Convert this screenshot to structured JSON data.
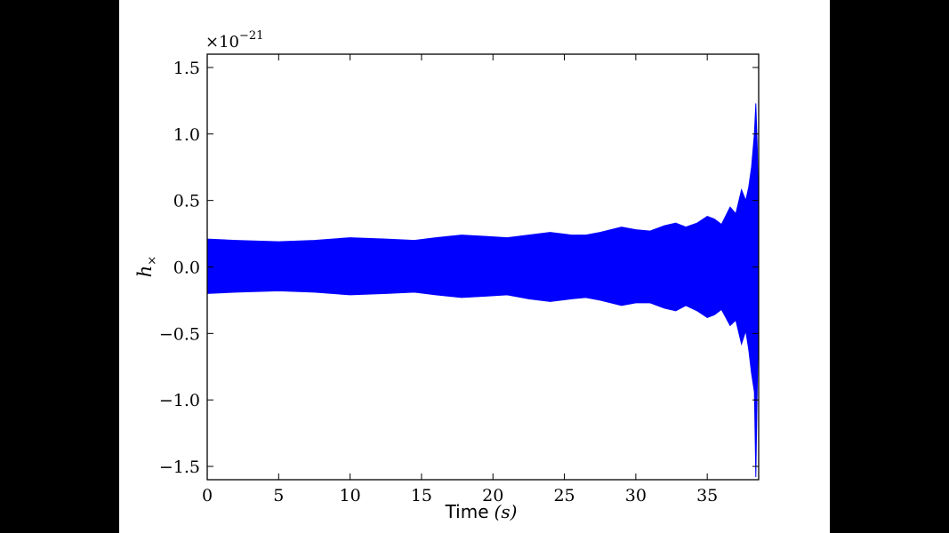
{
  "chart_data": {
    "type": "line",
    "xlabel": "Time",
    "xlabel_unit": "(s)",
    "ylabel": "h",
    "ylabel_subscript": "×",
    "y_offset_text": "×10",
    "y_offset_exponent": "−21",
    "xlim": [
      0,
      38.6
    ],
    "ylim": [
      -1.6,
      1.6
    ],
    "x_ticks": [
      0,
      5,
      10,
      15,
      20,
      25,
      30,
      35
    ],
    "x_tick_labels": [
      "0",
      "5",
      "10",
      "15",
      "20",
      "25",
      "30",
      "35"
    ],
    "y_ticks": [
      -1.5,
      -1.0,
      -0.5,
      0.0,
      0.5,
      1.0,
      1.5
    ],
    "y_tick_labels": [
      "−1.5",
      "−1.0",
      "−0.5",
      "0.0",
      "0.5",
      "1.0",
      "1.5"
    ],
    "series": [
      {
        "color": "#0000ff",
        "envelope_upper": {
          "x": [
            0,
            2,
            5,
            7.5,
            10,
            12.5,
            14.5,
            16,
            17.8,
            19.5,
            21,
            22.5,
            24,
            25.5,
            26.5,
            27.5,
            29,
            30,
            31,
            32,
            32.8,
            33.5,
            34.3,
            35,
            35.5,
            36,
            36.6,
            37,
            37.4,
            37.7,
            37.9,
            38.1,
            38.3,
            38.4,
            38.5,
            38.6
          ],
          "y": [
            0.21,
            0.2,
            0.19,
            0.2,
            0.22,
            0.21,
            0.2,
            0.22,
            0.24,
            0.23,
            0.22,
            0.24,
            0.26,
            0.24,
            0.24,
            0.26,
            0.3,
            0.28,
            0.27,
            0.31,
            0.33,
            0.3,
            0.33,
            0.38,
            0.36,
            0.32,
            0.45,
            0.4,
            0.58,
            0.5,
            0.6,
            0.75,
            1.0,
            1.23,
            0.9,
            0.3
          ]
        },
        "envelope_lower": {
          "x": [
            0,
            2,
            5,
            7.5,
            10,
            12.5,
            14.5,
            16,
            17.8,
            19.5,
            21,
            22.5,
            24,
            25.5,
            26.5,
            27.5,
            29,
            30,
            31,
            32,
            32.8,
            33.5,
            34.3,
            35,
            35.5,
            36,
            36.6,
            37,
            37.4,
            37.7,
            37.9,
            38.1,
            38.3,
            38.4,
            38.5,
            38.6
          ],
          "y": [
            -0.2,
            -0.19,
            -0.18,
            -0.19,
            -0.21,
            -0.2,
            -0.19,
            -0.21,
            -0.23,
            -0.22,
            -0.21,
            -0.24,
            -0.26,
            -0.24,
            -0.23,
            -0.25,
            -0.29,
            -0.27,
            -0.27,
            -0.31,
            -0.33,
            -0.29,
            -0.33,
            -0.38,
            -0.36,
            -0.32,
            -0.44,
            -0.4,
            -0.58,
            -0.48,
            -0.62,
            -0.8,
            -0.94,
            -1.58,
            -0.9,
            -0.3
          ]
        }
      }
    ],
    "grid": false,
    "legend": "none"
  }
}
